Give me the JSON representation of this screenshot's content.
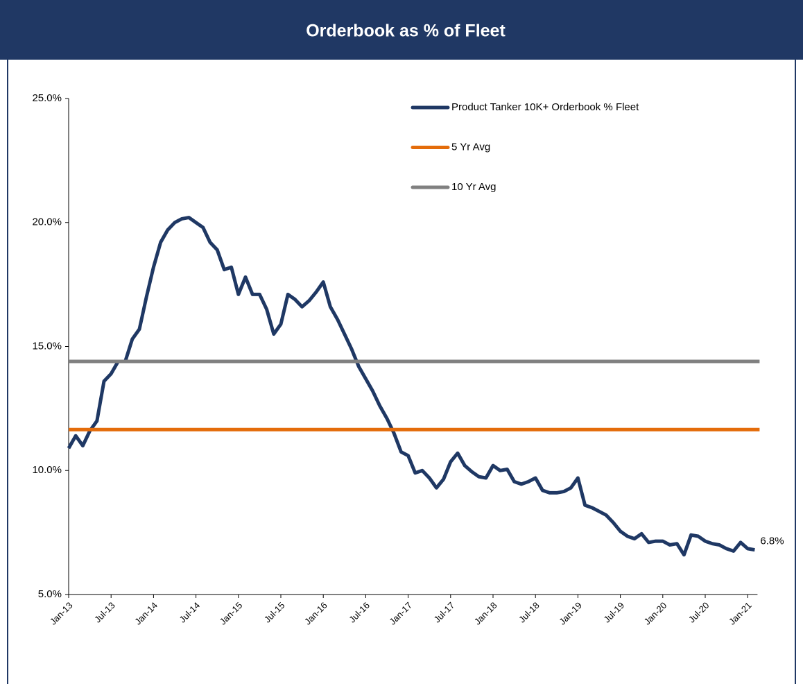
{
  "chart_data": {
    "type": "line",
    "title": "Orderbook as % of Fleet",
    "categories": [
      "Jan-13",
      null,
      null,
      null,
      null,
      null,
      "Jul-13",
      null,
      null,
      null,
      null,
      null,
      "Jan-14",
      null,
      null,
      null,
      null,
      null,
      "Jul-14",
      null,
      null,
      null,
      null,
      null,
      "Jan-15",
      null,
      null,
      null,
      null,
      null,
      "Jul-15",
      null,
      null,
      null,
      null,
      null,
      "Jan-16",
      null,
      null,
      null,
      null,
      null,
      "Jul-16",
      null,
      null,
      null,
      null,
      null,
      "Jan-17",
      null,
      null,
      null,
      null,
      null,
      "Jul-17",
      null,
      null,
      null,
      null,
      null,
      "Jan-18",
      null,
      null,
      null,
      null,
      null,
      "Jul-18",
      null,
      null,
      null,
      null,
      null,
      "Jan-19",
      null,
      null,
      null,
      null,
      null,
      "Jul-19",
      null,
      null,
      null,
      null,
      null,
      "Jan-20",
      null,
      null,
      null,
      null,
      null,
      "Jul-20",
      null,
      null,
      null,
      null,
      null,
      "Jan-21",
      null
    ],
    "series": [
      {
        "name": "Product Tanker 10K+ Orderbook % Fleet",
        "color": "#1f3864",
        "values": [
          10.9,
          11.4,
          11.0,
          11.6,
          12.0,
          13.6,
          13.9,
          14.4,
          14.4,
          15.3,
          15.7,
          17.0,
          18.2,
          19.2,
          19.7,
          20.0,
          20.15,
          20.2,
          20.0,
          19.8,
          19.2,
          18.9,
          18.1,
          18.2,
          17.1,
          17.8,
          17.1,
          17.1,
          16.5,
          15.5,
          15.9,
          17.1,
          16.9,
          16.6,
          16.85,
          17.2,
          17.6,
          16.6,
          16.1,
          15.5,
          14.9,
          14.2,
          13.7,
          13.2,
          12.6,
          12.1,
          11.5,
          10.75,
          10.6,
          9.9,
          10.0,
          9.7,
          9.3,
          9.65,
          10.35,
          10.7,
          10.2,
          9.95,
          9.75,
          9.7,
          10.2,
          10.0,
          10.05,
          9.55,
          9.45,
          9.55,
          9.7,
          9.2,
          9.1,
          9.1,
          9.15,
          9.3,
          9.7,
          8.6,
          8.5,
          8.35,
          8.2,
          7.9,
          7.55,
          7.35,
          7.25,
          7.45,
          7.1,
          7.15,
          7.15,
          7.0,
          7.05,
          6.6,
          7.4,
          7.35,
          7.15,
          7.05,
          7.0,
          6.85,
          6.75,
          7.1,
          6.85,
          6.8
        ],
        "value_labels": [
          null,
          null,
          null,
          null,
          null,
          null,
          null,
          null,
          null,
          null,
          null,
          null,
          null,
          null,
          null,
          null,
          null,
          null,
          null,
          null,
          null,
          null,
          null,
          null,
          null,
          null,
          null,
          null,
          null,
          null,
          null,
          null,
          null,
          null,
          null,
          null,
          null,
          null,
          null,
          null,
          null,
          null,
          null,
          null,
          null,
          null,
          null,
          null,
          null,
          null,
          null,
          null,
          null,
          null,
          null,
          null,
          null,
          null,
          null,
          null,
          null,
          null,
          null,
          null,
          null,
          null,
          null,
          null,
          null,
          null,
          null,
          null,
          null,
          null,
          null,
          null,
          null,
          null,
          null,
          null,
          null,
          null,
          null,
          null,
          null,
          null,
          null,
          null,
          null,
          null,
          null,
          null,
          null,
          null,
          null,
          null,
          null,
          "6.8%"
        ]
      },
      {
        "name": "5 Yr Avg",
        "color": "#e46c0a",
        "value": 11.65
      },
      {
        "name": "10 Yr Avg",
        "color": "#808080",
        "value": 14.4
      }
    ],
    "ylim": [
      5,
      25
    ],
    "yticks": [
      {
        "value": 5,
        "label": "5.0%"
      },
      {
        "value": 10,
        "label": "10.0%"
      },
      {
        "value": 15,
        "label": "15.0%"
      },
      {
        "value": 20,
        "label": "20.0%"
      },
      {
        "value": 25,
        "label": "25.0%"
      }
    ],
    "legend": "top-right"
  }
}
